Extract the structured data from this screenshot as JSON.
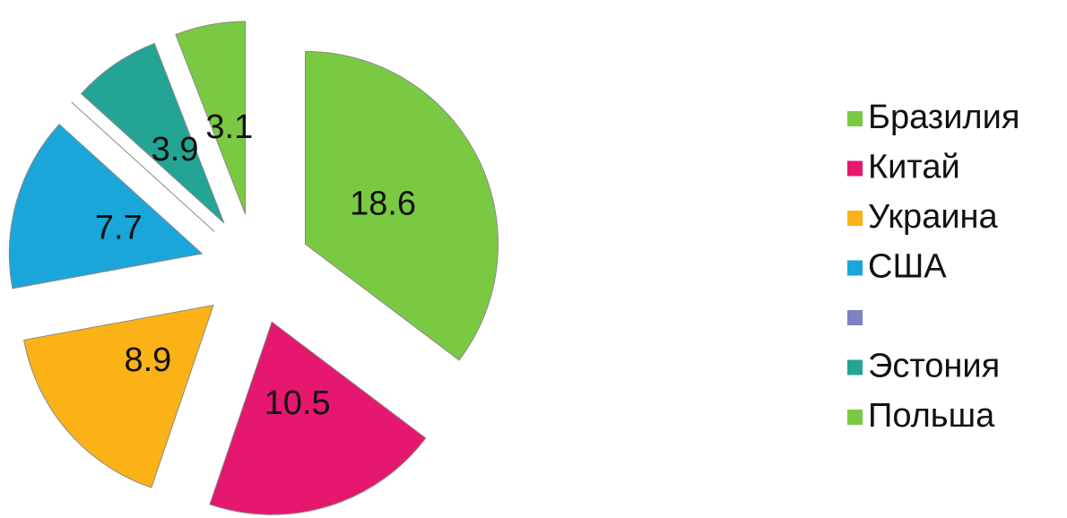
{
  "chart_data": {
    "type": "pie",
    "categories": [
      "Бразилия",
      "Китай",
      "Украина",
      "США",
      null,
      "Эстония",
      "Польша"
    ],
    "values": [
      18.6,
      10.5,
      8.9,
      7.7,
      0,
      3.9,
      3.1
    ],
    "colors": [
      "#7ac943",
      "#e5176f",
      "#fbb217",
      "#1aa6d8",
      "#7b83c4",
      "#23a494",
      "#7ac943"
    ]
  }
}
